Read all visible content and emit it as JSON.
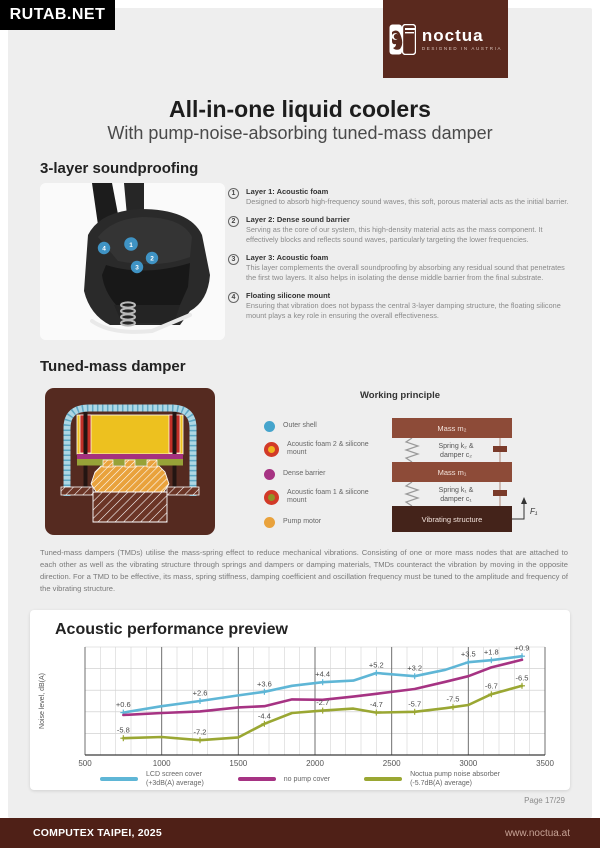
{
  "watermark": "RUTAB.NET",
  "brand": {
    "name": "noctua",
    "tagline": "DESIGNED IN AUSTRIA"
  },
  "header": {
    "title": "All-in-one liquid coolers",
    "subtitle": "With pump-noise-absorbing tuned-mass damper"
  },
  "soundproofing": {
    "heading": "3-layer soundproofing",
    "items": [
      {
        "num": "1",
        "title": "Layer 1: Acoustic foam",
        "desc": "Designed to absorb high-frequency sound waves, this soft, porous material acts as the initial barrier."
      },
      {
        "num": "2",
        "title": "Layer 2: Dense sound barrier",
        "desc": "Serving as the core of our system, this high-density material acts as the mass component. It effectively blocks and reflects sound waves, particularly targeting the lower frequencies."
      },
      {
        "num": "3",
        "title": "Layer 3: Acoustic foam",
        "desc": "This layer complements the overall soundproofing by absorbing any residual sound that penetrates the first two layers. It also helps in isolating the dense middle barrier from the final substrate."
      },
      {
        "num": "4",
        "title": "Floating silicone mount",
        "desc": "Ensuring that vibration does not bypass the central 3-layer damping structure, the floating silicone mount plays a key role in ensuring the overall effectiveness."
      }
    ]
  },
  "tmd": {
    "heading": "Tuned-mass damper",
    "working_principle": {
      "title": "Working principle",
      "legend": [
        {
          "label": "Outer shell",
          "swatch": "blue-dot",
          "color": "#45a4cc"
        },
        {
          "label": "Acoustic foam 2 & silicone mount",
          "swatch": "red-ring",
          "inner": "#f0b41e"
        },
        {
          "label": "Dense barrier",
          "swatch": "magenta-dot",
          "color": "#a63383"
        },
        {
          "label": "Acoustic foam 1 & silicone mount",
          "swatch": "red-ring",
          "inner": "#8f9426"
        },
        {
          "label": "Pump motor",
          "swatch": "orange-dot",
          "color": "#e9a23c"
        }
      ],
      "diagram": {
        "mass2": "Mass m₂",
        "spring2_line1": "Spring k₂ &",
        "spring2_line2": "damper c₂",
        "mass1": "Mass m₁",
        "spring1_line1": "Spring k₁ &",
        "spring1_line2": "damper c₁",
        "base": "Vibrating structure",
        "force": "F₁"
      }
    },
    "paragraph": "Tuned-mass dampers (TMDs) utilise the mass-spring effect to reduce mechanical vibrations. Consisting of one or more mass nodes that are attached to each other as well as the vibrating structure through springs and dampers or damping materials, TMDs counteract the vibration by moving in the opposite direction. For a TMD to be effective, its mass, spring stiffness, damping coefficient and oscillation frequency must be tuned to the amplitude and frequency of the vibrating structure."
  },
  "chart": {
    "heading": "Acoustic performance preview",
    "legend": [
      {
        "line1": "LCD screen cover",
        "line2": "(+3dB(A) average)",
        "color": "#5fb6d6"
      },
      {
        "line1": "no pump cover",
        "line2": "",
        "color": "#a63383"
      },
      {
        "line1": "Noctua pump noise absorber",
        "line2": "(-5.7dB(A) average)",
        "color": "#9aa733"
      }
    ]
  },
  "chart_data": {
    "type": "line",
    "title": "Acoustic performance preview",
    "xlabel": "",
    "ylabel": "Noise level, dB(A)",
    "x_ticks": [
      500,
      1000,
      1500,
      2000,
      2500,
      3000,
      3500
    ],
    "xlim": [
      500,
      3500
    ],
    "ylim": [
      -10,
      17
    ],
    "grid": "minor vertical every 100 rpm, major every 500 rpm, 5 horizontal rows",
    "legend_position": "bottom",
    "note": "Point labels are dB(A) deltas versus the 'no pump cover' reference curve",
    "series": [
      {
        "name": "LCD screen cover (+3dB(A) average)",
        "color": "#5fb6d6",
        "points": [
          [
            750,
            0.6
          ],
          [
            1000,
            2.2
          ],
          [
            1250,
            3.5
          ],
          [
            1500,
            4.9
          ],
          [
            1670,
            5.8
          ],
          [
            1850,
            7.3
          ],
          [
            2050,
            8.2
          ],
          [
            2250,
            8.6
          ],
          [
            2400,
            10.5
          ],
          [
            2650,
            9.7
          ],
          [
            2850,
            11.3
          ],
          [
            3000,
            13.2
          ],
          [
            3150,
            13.7
          ],
          [
            3350,
            14.7
          ]
        ],
        "labels": [
          [
            750,
            "+0.6"
          ],
          [
            1250,
            "+2.6"
          ],
          [
            1670,
            "+3.6"
          ],
          [
            2050,
            "+4.4"
          ],
          [
            2400,
            "+5.2"
          ],
          [
            2650,
            "+3.2"
          ],
          [
            3000,
            "+3.5"
          ],
          [
            3150,
            "+1.8"
          ],
          [
            3350,
            "+0.9"
          ]
        ]
      },
      {
        "name": "no pump cover",
        "color": "#a63383",
        "points": [
          [
            750,
            0
          ],
          [
            1000,
            0.5
          ],
          [
            1250,
            0.9
          ],
          [
            1500,
            1.9
          ],
          [
            1670,
            2.2
          ],
          [
            1850,
            3.9
          ],
          [
            2050,
            3.8
          ],
          [
            2250,
            4.6
          ],
          [
            2400,
            5.3
          ],
          [
            2650,
            6.5
          ],
          [
            2850,
            8.3
          ],
          [
            3000,
            9.7
          ],
          [
            3150,
            11.9
          ],
          [
            3350,
            13.8
          ]
        ],
        "labels": []
      },
      {
        "name": "Noctua pump noise absorber (-5.7dB(A) average)",
        "color": "#9aa733",
        "points": [
          [
            750,
            -5.8
          ],
          [
            1000,
            -5.5
          ],
          [
            1250,
            -6.3
          ],
          [
            1500,
            -5.6
          ],
          [
            1670,
            -2.2
          ],
          [
            1850,
            0.5
          ],
          [
            2050,
            1.1
          ],
          [
            2250,
            1.6
          ],
          [
            2400,
            0.6
          ],
          [
            2650,
            0.8
          ],
          [
            2850,
            1.7
          ],
          [
            3000,
            2.5
          ],
          [
            3150,
            5.2
          ],
          [
            3350,
            7.3
          ]
        ],
        "labels": [
          [
            750,
            "-5.8"
          ],
          [
            1250,
            "-7.2"
          ],
          [
            1670,
            "-4.4"
          ],
          [
            2050,
            "-2.7"
          ],
          [
            2400,
            "-4.7"
          ],
          [
            2650,
            "-5.7"
          ],
          [
            2900,
            "-7.5"
          ],
          [
            3150,
            "-6.7"
          ],
          [
            3350,
            "-6.5"
          ]
        ]
      }
    ]
  },
  "footer": {
    "page": "Page 17/29",
    "left": "COMPUTEX TAIPEI, 2025",
    "right": "www.noctua.at"
  },
  "colors": {
    "brand_brown": "#5a291e",
    "footer_brown": "#4f2017",
    "marker_blue": "#3f93c4",
    "chart_blue": "#5fb6d6",
    "chart_magenta": "#a63383",
    "chart_olive": "#9aa733"
  }
}
